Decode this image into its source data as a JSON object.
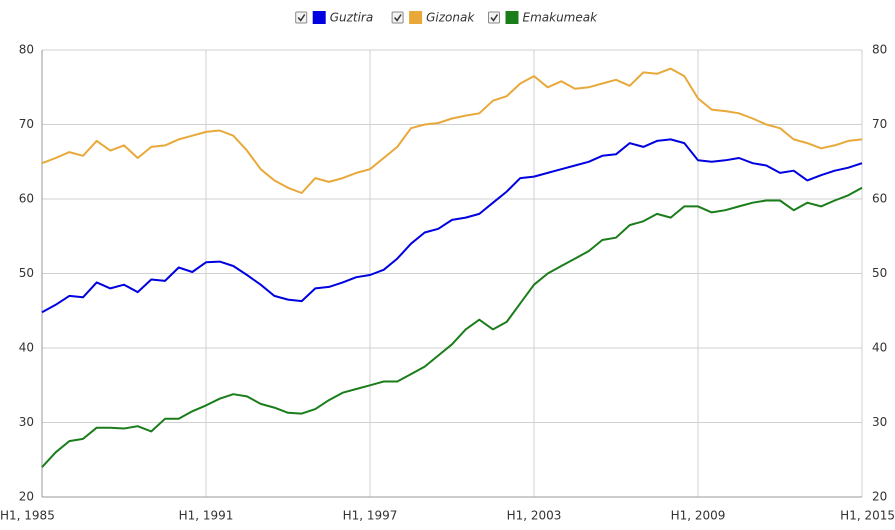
{
  "chart_data": {
    "type": "line",
    "categories": [
      "H1, 1985",
      null,
      null,
      null,
      null,
      null,
      null,
      null,
      null,
      null,
      null,
      null,
      "H1, 1991",
      null,
      null,
      null,
      null,
      null,
      null,
      null,
      null,
      null,
      null,
      null,
      "H1, 1997",
      null,
      null,
      null,
      null,
      null,
      null,
      null,
      null,
      null,
      null,
      null,
      "H1, 2003",
      null,
      null,
      null,
      null,
      null,
      null,
      null,
      null,
      null,
      null,
      null,
      "H1, 2009",
      null,
      null,
      null,
      null,
      null,
      null,
      null,
      null,
      null,
      null,
      null,
      "H1, 2015"
    ],
    "series": [
      {
        "name": "Guztira",
        "color": "#0000e0",
        "values": [
          44.8,
          45.8,
          47.0,
          46.8,
          48.8,
          48.0,
          48.5,
          47.5,
          49.2,
          49.0,
          50.8,
          50.2,
          51.5,
          51.6,
          51.0,
          49.8,
          48.5,
          47.0,
          46.5,
          46.3,
          48.0,
          48.2,
          48.8,
          49.5,
          49.8,
          50.5,
          52.0,
          54.0,
          55.5,
          56.0,
          57.2,
          57.5,
          58.0,
          59.5,
          61.0,
          62.8,
          63.0,
          63.5,
          64.0,
          64.5,
          65.0,
          65.8,
          66.0,
          67.5,
          67.0,
          67.8,
          68.0,
          67.5,
          65.2,
          65.0,
          65.2,
          65.5,
          64.8,
          64.5,
          63.5,
          63.8,
          62.5,
          63.2,
          63.8,
          64.2,
          64.8
        ]
      },
      {
        "name": "Gizonak",
        "color": "#e8a93a",
        "values": [
          64.8,
          65.5,
          66.3,
          65.8,
          67.8,
          66.5,
          67.2,
          65.5,
          67.0,
          67.2,
          68.0,
          68.5,
          69.0,
          69.2,
          68.5,
          66.5,
          64.0,
          62.5,
          61.5,
          60.8,
          62.8,
          62.3,
          62.8,
          63.5,
          64.0,
          65.5,
          67.0,
          69.5,
          70.0,
          70.2,
          70.8,
          71.2,
          71.5,
          73.2,
          73.8,
          75.5,
          76.5,
          75.0,
          75.8,
          74.8,
          75.0,
          75.5,
          76.0,
          75.2,
          77.0,
          76.8,
          77.5,
          76.5,
          73.5,
          72.0,
          71.8,
          71.5,
          70.8,
          70.0,
          69.5,
          68.0,
          67.5,
          66.8,
          67.2,
          67.8,
          68.0
        ]
      },
      {
        "name": "Emakumeak",
        "color": "#1a7d1a",
        "values": [
          24.0,
          26.0,
          27.5,
          27.8,
          29.3,
          29.3,
          29.2,
          29.5,
          28.8,
          30.5,
          30.5,
          31.5,
          32.3,
          33.2,
          33.8,
          33.5,
          32.5,
          32.0,
          31.3,
          31.2,
          31.8,
          33.0,
          34.0,
          34.5,
          35.0,
          35.5,
          35.5,
          36.5,
          37.5,
          39.0,
          40.5,
          42.5,
          43.8,
          42.5,
          43.5,
          46.0,
          48.5,
          50.0,
          51.0,
          52.0,
          53.0,
          54.5,
          54.8,
          56.5,
          57.0,
          58.0,
          57.5,
          59.0,
          59.0,
          58.2,
          58.5,
          59.0,
          59.5,
          59.8,
          59.8,
          58.5,
          59.5,
          59.0,
          59.8,
          60.5,
          61.5
        ]
      }
    ],
    "ylim": [
      20,
      80
    ],
    "yticks": [
      20,
      30,
      40,
      50,
      60,
      70,
      80
    ],
    "grid": true,
    "legend": "top"
  }
}
